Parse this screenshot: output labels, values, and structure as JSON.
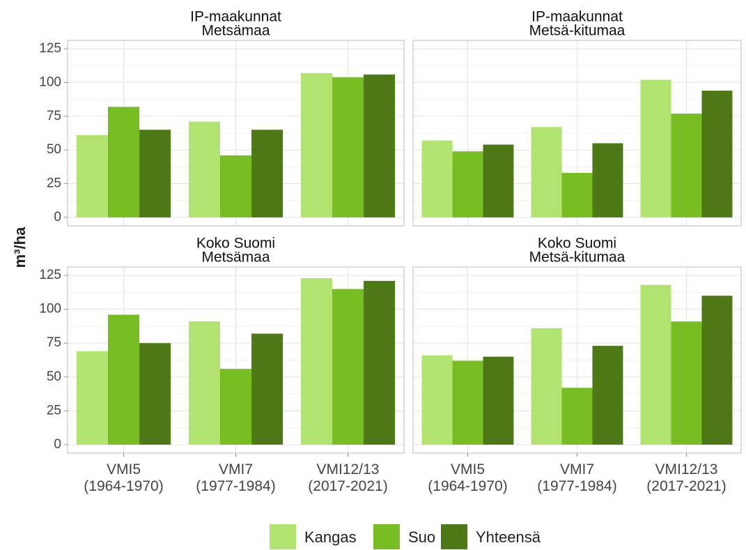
{
  "y_label": "m³/ha",
  "chart_data": [
    {
      "type": "bar",
      "title": "IP-maakunnat",
      "subtitle": "Metsämaa",
      "categories": [
        null,
        null,
        null
      ],
      "series": [
        {
          "name": "Kangas",
          "color": "#b0e46f",
          "values": [
            61,
            71,
            107
          ]
        },
        {
          "name": "Suo",
          "color": "#78be22",
          "values": [
            82,
            46,
            104
          ]
        },
        {
          "name": "Yhteensä",
          "color": "#4d7a17",
          "values": [
            65,
            65,
            106
          ]
        }
      ],
      "ylim": [
        -6.25,
        131.25
      ],
      "yticks": [
        0,
        25,
        50,
        75,
        100,
        125
      ],
      "minor_yticks": [
        12.5,
        37.5,
        62.5,
        87.5,
        112.5
      ],
      "show_ytick_labels": true,
      "grid": true
    },
    {
      "type": "bar",
      "title": "IP-maakunnat",
      "subtitle": "Metsä-kitumaa",
      "categories": [
        null,
        null,
        null
      ],
      "series": [
        {
          "name": "Kangas",
          "color": "#b0e46f",
          "values": [
            57,
            67,
            102
          ]
        },
        {
          "name": "Suo",
          "color": "#78be22",
          "values": [
            49,
            33,
            77
          ]
        },
        {
          "name": "Yhteensä",
          "color": "#4d7a17",
          "values": [
            54,
            55,
            94
          ]
        }
      ],
      "ylim": [
        -6.25,
        131.25
      ],
      "yticks": [
        0,
        25,
        50,
        75,
        100,
        125
      ],
      "minor_yticks": [
        12.5,
        37.5,
        62.5,
        87.5,
        112.5
      ],
      "show_ytick_labels": false,
      "grid": true
    },
    {
      "type": "bar",
      "title": "Koko Suomi",
      "subtitle": "Metsämaa",
      "categories": [
        [
          "VMI5",
          "(1964-1970)"
        ],
        [
          "VMI7",
          "(1977-1984)"
        ],
        [
          "VMI12/13",
          "(2017-2021)"
        ]
      ],
      "series": [
        {
          "name": "Kangas",
          "color": "#b0e46f",
          "values": [
            69,
            91,
            123
          ]
        },
        {
          "name": "Suo",
          "color": "#78be22",
          "values": [
            96,
            56,
            115
          ]
        },
        {
          "name": "Yhteensä",
          "color": "#4d7a17",
          "values": [
            75,
            82,
            121
          ]
        }
      ],
      "ylim": [
        -6.25,
        131.25
      ],
      "yticks": [
        0,
        25,
        50,
        75,
        100,
        125
      ],
      "minor_yticks": [
        12.5,
        37.5,
        62.5,
        87.5,
        112.5
      ],
      "show_ytick_labels": true,
      "grid": true
    },
    {
      "type": "bar",
      "title": "Koko Suomi",
      "subtitle": "Metsä-kitumaa",
      "categories": [
        [
          "VMI5",
          "(1964-1970)"
        ],
        [
          "VMI7",
          "(1977-1984)"
        ],
        [
          "VMI12/13",
          "(2017-2021)"
        ]
      ],
      "series": [
        {
          "name": "Kangas",
          "color": "#b0e46f",
          "values": [
            66,
            86,
            118
          ]
        },
        {
          "name": "Suo",
          "color": "#78be22",
          "values": [
            62,
            42,
            91
          ]
        },
        {
          "name": "Yhteensä",
          "color": "#4d7a17",
          "values": [
            65,
            73,
            110
          ]
        }
      ],
      "ylim": [
        -6.25,
        131.25
      ],
      "yticks": [
        0,
        25,
        50,
        75,
        100,
        125
      ],
      "minor_yticks": [
        12.5,
        37.5,
        62.5,
        87.5,
        112.5
      ],
      "show_ytick_labels": false,
      "grid": true
    }
  ]
}
